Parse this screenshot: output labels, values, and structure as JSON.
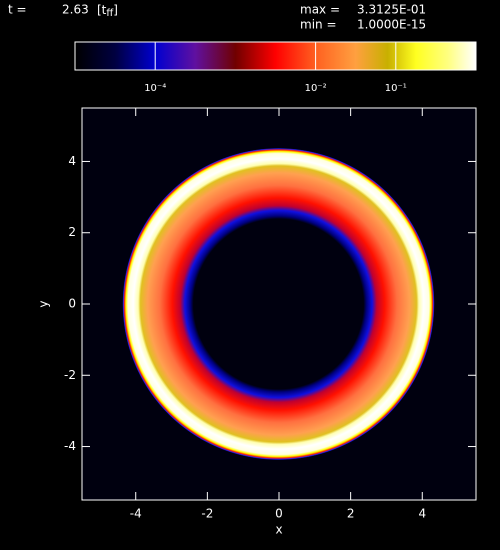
{
  "header": {
    "time_label": "t =",
    "time_value": "2.63",
    "time_unit": "[t",
    "time_unit_sub": "ff",
    "time_unit_close": "]",
    "max_label": "max =",
    "max_value": "3.3125E-01",
    "min_label": "min =",
    "min_value": "1.0000E-15"
  },
  "chart_data": {
    "type": "heatmap",
    "xlabel": "x",
    "ylabel": "y",
    "xlim": [
      -5.5,
      5.5
    ],
    "ylim": [
      -5.5,
      5.5
    ],
    "xticks": [
      -4,
      -2,
      0,
      2,
      4
    ],
    "yticks": [
      -4,
      -2,
      0,
      2,
      4
    ],
    "colorbar": {
      "scale": "log",
      "lim": [
        1e-05,
        1
      ],
      "ticks": [
        {
          "value": 0.0001,
          "label": "10⁻⁴"
        },
        {
          "value": 0.01,
          "label": "10⁻²"
        },
        {
          "value": 0.1,
          "label": "10⁻¹"
        }
      ]
    }
  }
}
